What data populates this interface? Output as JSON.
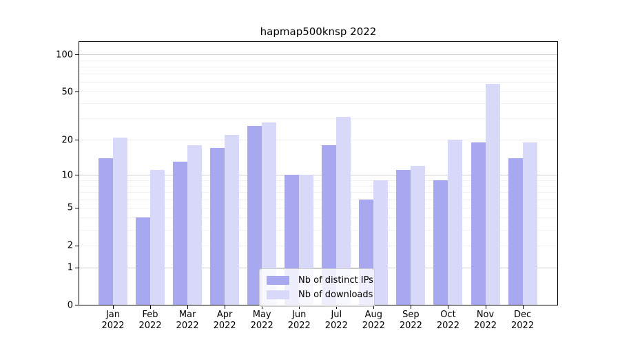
{
  "chart_data": {
    "type": "bar",
    "title": "hapmap500knsp 2022",
    "categories": [
      "Jan 2022",
      "Feb 2022",
      "Mar 2022",
      "Apr 2022",
      "May 2022",
      "Jun 2022",
      "Jul 2022",
      "Aug 2022",
      "Sep 2022",
      "Oct 2022",
      "Nov 2022",
      "Dec 2022"
    ],
    "category_month_labels": [
      "Jan",
      "Feb",
      "Mar",
      "Apr",
      "May",
      "Jun",
      "Jul",
      "Aug",
      "Sep",
      "Oct",
      "Nov",
      "Dec"
    ],
    "category_year_label": "2022",
    "series": [
      {
        "name": "Nb of distinct IPs",
        "color": "#a8a8f0",
        "values": [
          14,
          4,
          13,
          17,
          26,
          10,
          18,
          6,
          11,
          9,
          19,
          14
        ]
      },
      {
        "name": "Nb of downloads",
        "color": "#d8d8f8",
        "values": [
          21,
          11,
          18,
          22,
          28,
          10,
          31,
          9,
          12,
          20,
          58,
          19
        ]
      }
    ],
    "yscale": "symlog (y proportional to ln(1+v))",
    "ylim": [
      0,
      128
    ],
    "yticks": [
      100,
      50,
      20,
      10,
      5,
      2,
      1,
      0
    ],
    "grid": "horizontal major (1,10,100) and minor (2-9, 20-90) gridlines",
    "legend_position": "lower center",
    "xlabel": "",
    "ylabel": ""
  },
  "colors": {
    "background": "#ffffff",
    "axis": "#000000",
    "grid_major": "#cdcdcd",
    "grid_minor": "#efefef",
    "bar_distinct_ips": "#a8a8f0",
    "bar_downloads": "#d8d8f8",
    "legend_background": "rgba(255,255,255,0.8)",
    "legend_border": "#cccccc"
  }
}
